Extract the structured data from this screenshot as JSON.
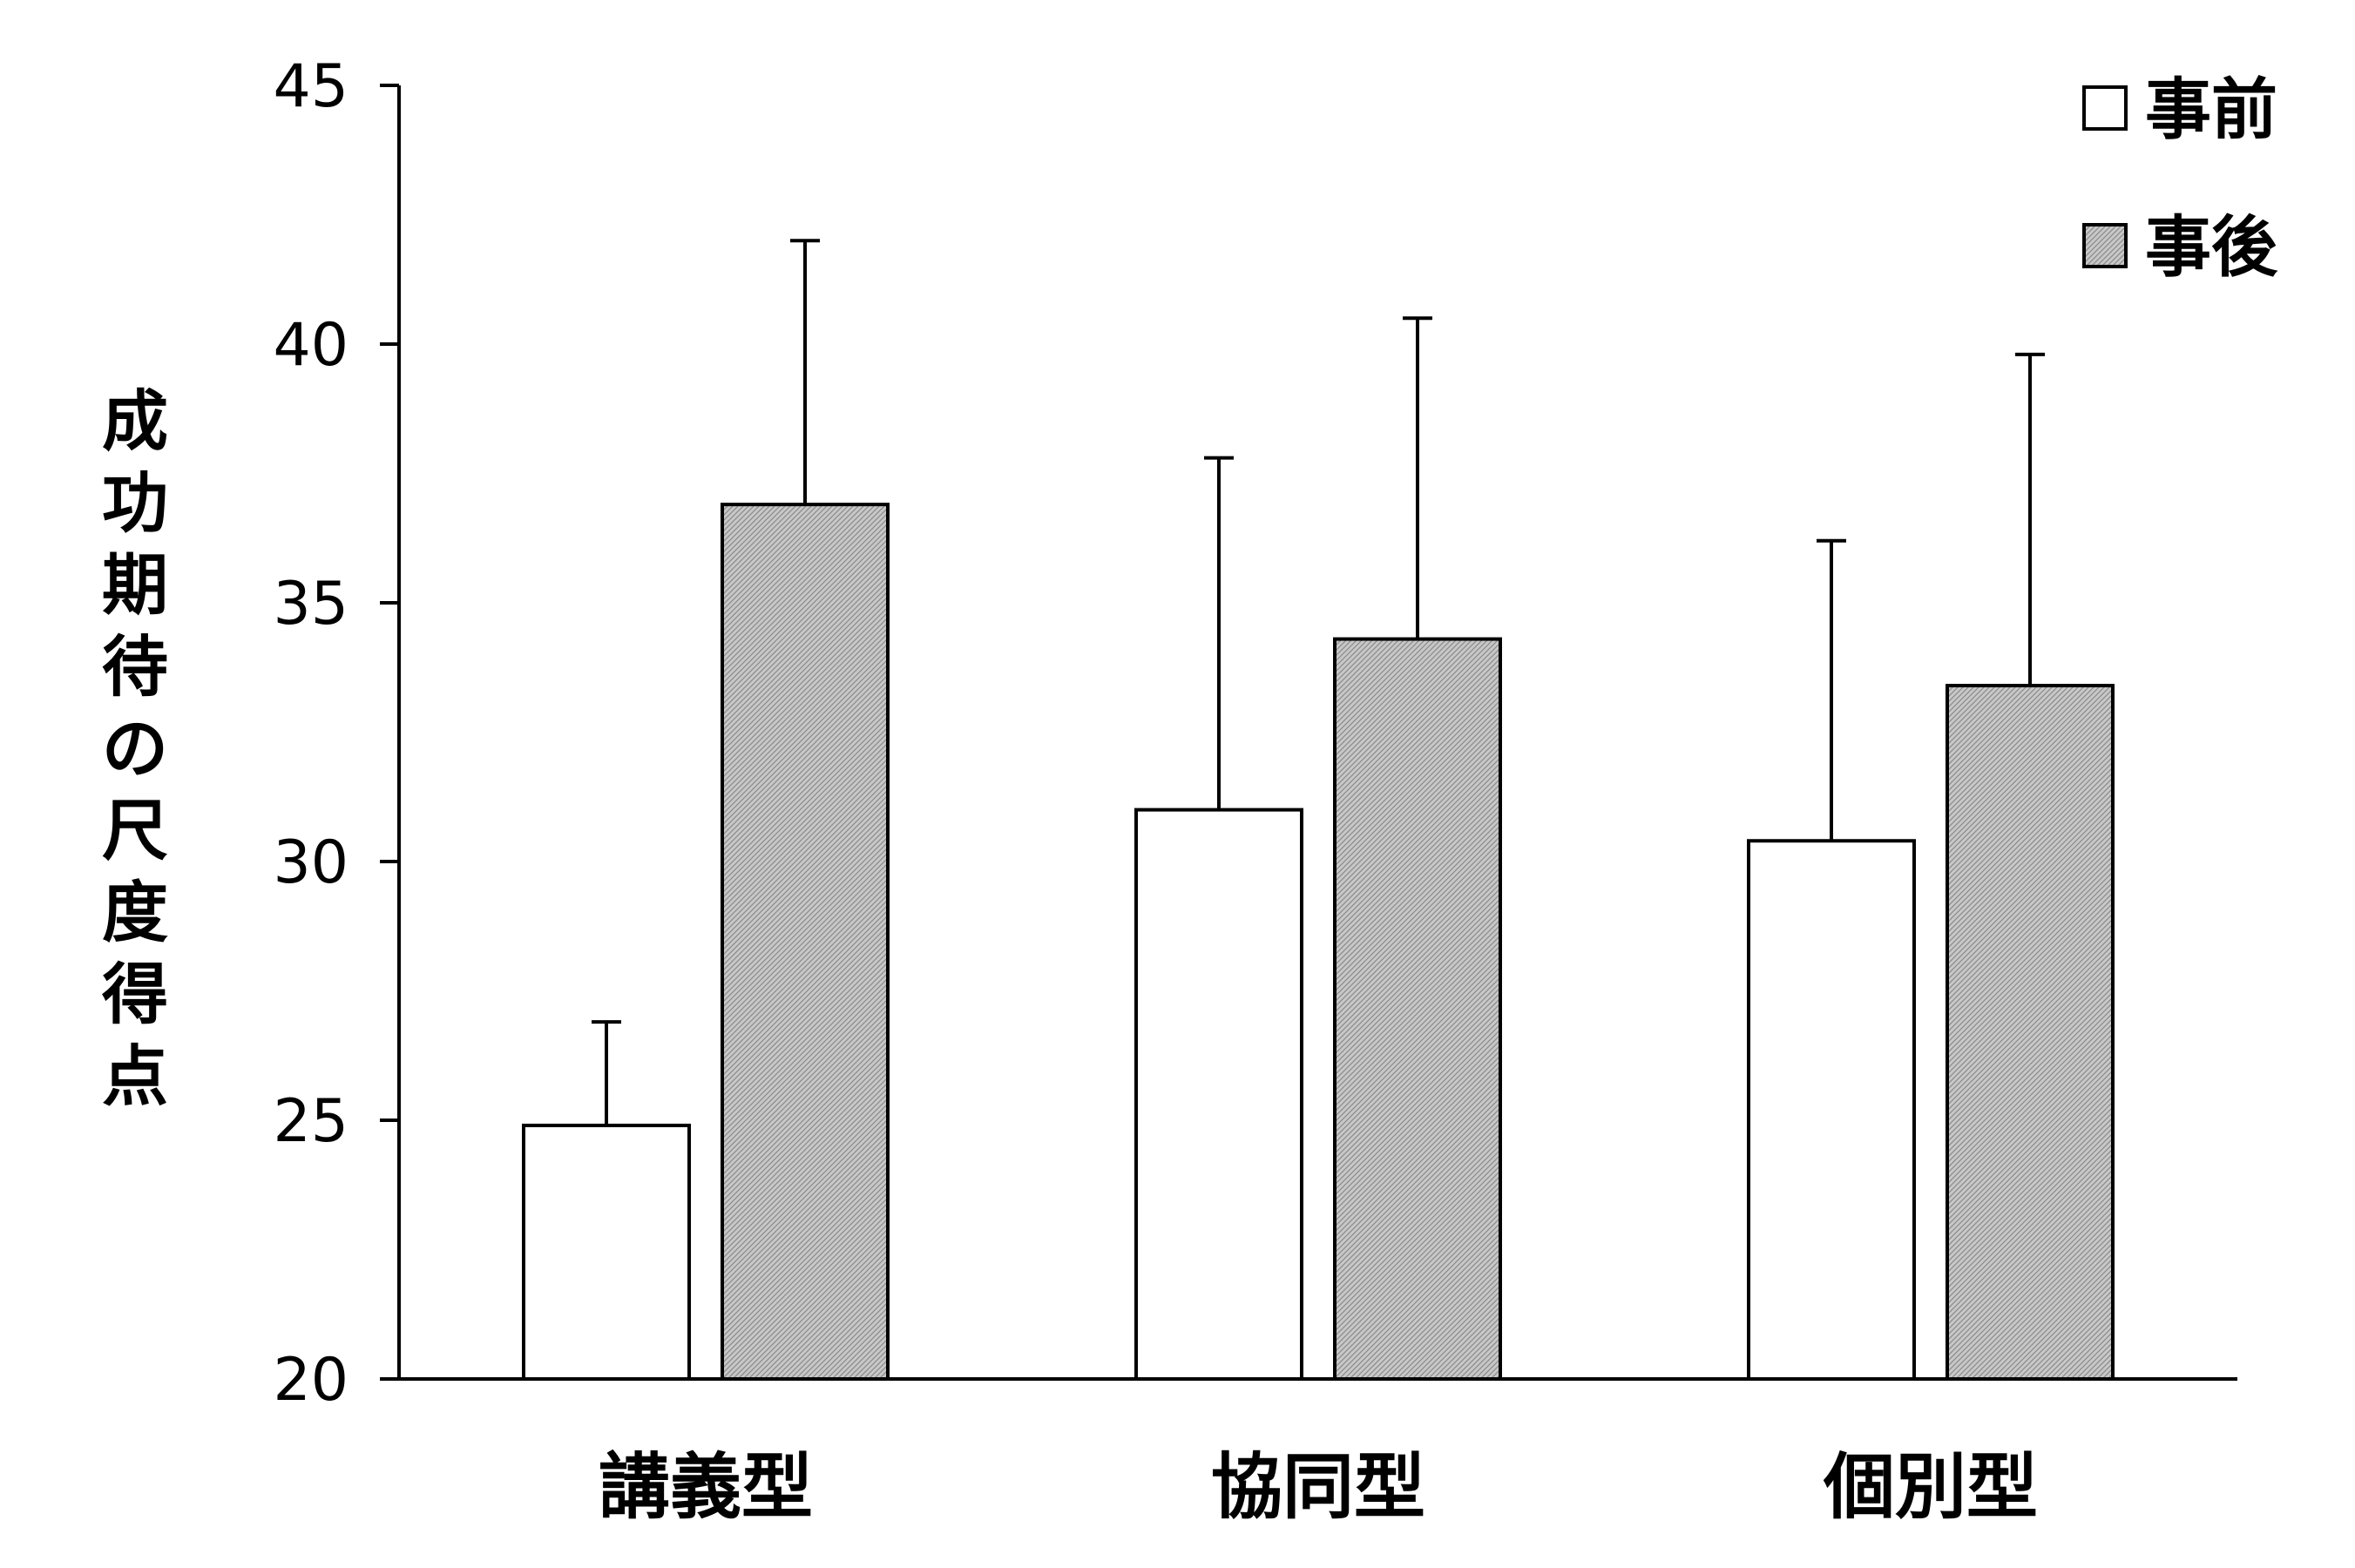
{
  "chart_data": {
    "type": "bar",
    "title": "",
    "xlabel": "",
    "ylabel": "成功期待の尺度得点",
    "categories": [
      "講義型",
      "協同型",
      "個別型"
    ],
    "series": [
      {
        "name": "事前",
        "values": [
          24.9,
          31.0,
          30.4
        ],
        "errors": [
          2.0,
          6.8,
          5.8
        ],
        "fill": "#ffffff"
      },
      {
        "name": "事後",
        "values": [
          36.9,
          34.3,
          33.4
        ],
        "errors": [
          5.1,
          6.2,
          6.4
        ],
        "fill": "#c8c8c8"
      }
    ],
    "ylim": [
      20,
      45
    ],
    "yticks": [
      20,
      25,
      30,
      35,
      40,
      45
    ],
    "grid": false,
    "legend_position": "top-right",
    "error_bars": "upper"
  }
}
